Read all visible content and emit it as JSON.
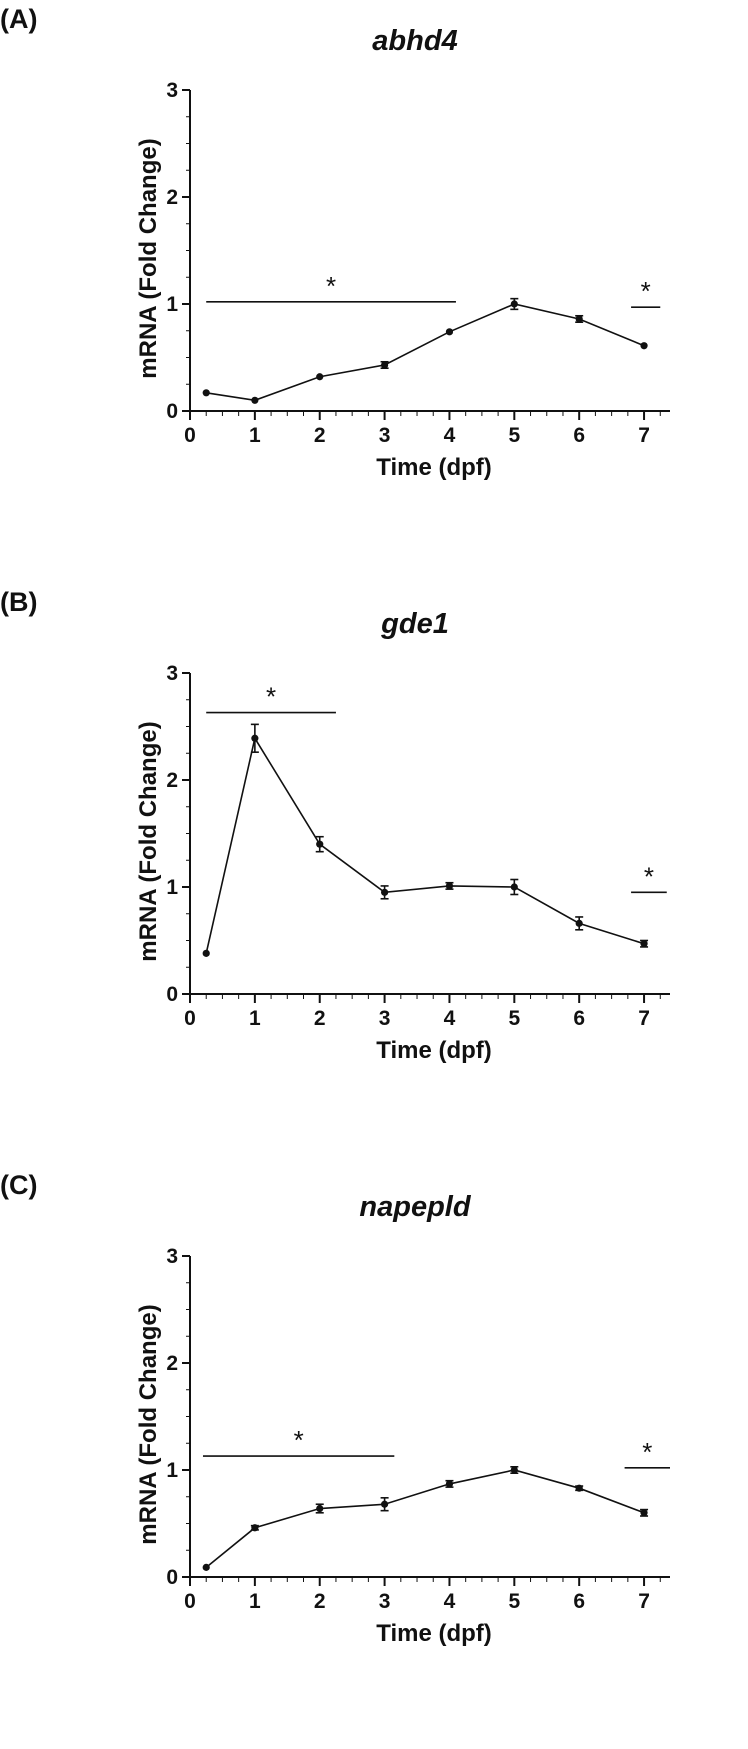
{
  "chart_data": [
    {
      "type": "line",
      "panel_label": "(A)",
      "title": "abhd4",
      "xlabel": "Time (dpf)",
      "ylabel": "mRNA (Fold Change)",
      "xlim": [
        0,
        7.4
      ],
      "ylim": [
        0,
        3
      ],
      "xticks": [
        "0",
        "1",
        "2",
        "3",
        "4",
        "5",
        "6",
        "7"
      ],
      "yticks": [
        "0",
        "1",
        "2",
        "3"
      ],
      "points": [
        {
          "x": 0.25,
          "y": 0.17,
          "err": 0.01
        },
        {
          "x": 1,
          "y": 0.1,
          "err": 0.01
        },
        {
          "x": 2,
          "y": 0.32,
          "err": 0.01
        },
        {
          "x": 3,
          "y": 0.43,
          "err": 0.03
        },
        {
          "x": 4,
          "y": 0.74,
          "err": 0.01
        },
        {
          "x": 5,
          "y": 1.0,
          "err": 0.05
        },
        {
          "x": 6,
          "y": 0.86,
          "err": 0.03
        },
        {
          "x": 7,
          "y": 0.61,
          "err": 0.01
        }
      ],
      "significance": [
        {
          "label": "*",
          "x_start": 0.25,
          "x_end": 4.1,
          "y": 1.02
        },
        {
          "label": "*",
          "x_start": 6.8,
          "x_end": 7.25,
          "y": 0.97
        }
      ]
    },
    {
      "type": "line",
      "panel_label": "(B)",
      "title": "gde1",
      "xlabel": "Time (dpf)",
      "ylabel": "mRNA (Fold Change)",
      "xlim": [
        0,
        7.4
      ],
      "ylim": [
        0,
        3
      ],
      "xticks": [
        "0",
        "1",
        "2",
        "3",
        "4",
        "5",
        "6",
        "7"
      ],
      "yticks": [
        "0",
        "1",
        "2",
        "3"
      ],
      "points": [
        {
          "x": 0.25,
          "y": 0.38,
          "err": 0.01
        },
        {
          "x": 1,
          "y": 2.39,
          "err": 0.13
        },
        {
          "x": 2,
          "y": 1.4,
          "err": 0.07
        },
        {
          "x": 3,
          "y": 0.95,
          "err": 0.06
        },
        {
          "x": 4,
          "y": 1.01,
          "err": 0.03
        },
        {
          "x": 5,
          "y": 1.0,
          "err": 0.07
        },
        {
          "x": 6,
          "y": 0.66,
          "err": 0.06
        },
        {
          "x": 7,
          "y": 0.47,
          "err": 0.03
        }
      ],
      "significance": [
        {
          "label": "*",
          "x_start": 0.25,
          "x_end": 2.25,
          "y": 2.63
        },
        {
          "label": "*",
          "x_start": 6.8,
          "x_end": 7.35,
          "y": 0.95
        }
      ]
    },
    {
      "type": "line",
      "panel_label": "(C)",
      "title": "napepld",
      "xlabel": "Time (dpf)",
      "ylabel": "mRNA (Fold Change)",
      "xlim": [
        0,
        7.4
      ],
      "ylim": [
        0,
        3
      ],
      "xticks": [
        "0",
        "1",
        "2",
        "3",
        "4",
        "5",
        "6",
        "7"
      ],
      "yticks": [
        "0",
        "1",
        "2",
        "3"
      ],
      "points": [
        {
          "x": 0.25,
          "y": 0.09,
          "err": 0.01
        },
        {
          "x": 1,
          "y": 0.46,
          "err": 0.02
        },
        {
          "x": 2,
          "y": 0.64,
          "err": 0.04
        },
        {
          "x": 3,
          "y": 0.68,
          "err": 0.06
        },
        {
          "x": 4,
          "y": 0.87,
          "err": 0.03
        },
        {
          "x": 5,
          "y": 1.0,
          "err": 0.03
        },
        {
          "x": 6,
          "y": 0.83,
          "err": 0.02
        },
        {
          "x": 7,
          "y": 0.6,
          "err": 0.03
        }
      ],
      "significance": [
        {
          "label": "*",
          "x_start": 0.2,
          "x_end": 3.15,
          "y": 1.13
        },
        {
          "label": "*",
          "x_start": 6.7,
          "x_end": 7.4,
          "y": 1.02
        }
      ]
    }
  ]
}
